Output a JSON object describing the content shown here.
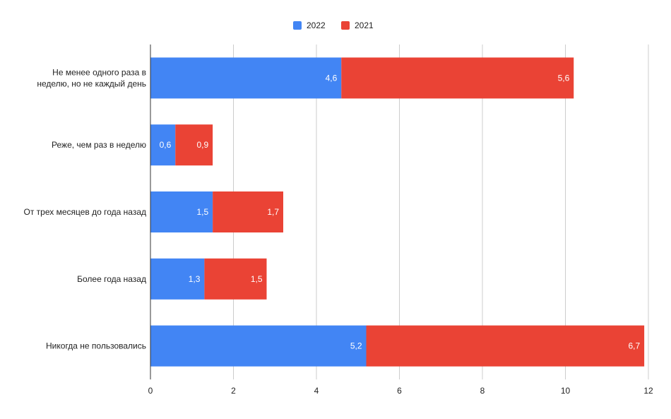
{
  "chart_data": {
    "type": "bar",
    "orientation": "horizontal",
    "stacked": true,
    "categories": [
      [
        "Не менее одного раза в",
        "неделю, но не каждый день"
      ],
      [
        "Реже, чем раз в неделю"
      ],
      [
        "От трех месяцев до года назад"
      ],
      [
        "Более года назад"
      ],
      [
        "Никогда не пользовались"
      ]
    ],
    "series": [
      {
        "name": "2022",
        "color": "#4285f4",
        "values": [
          4.6,
          0.6,
          1.5,
          1.3,
          5.2
        ],
        "labels": [
          "4,6",
          "0,6",
          "1,5",
          "1,3",
          "5,2"
        ]
      },
      {
        "name": "2021",
        "color": "#ea4335",
        "values": [
          5.6,
          0.9,
          1.7,
          1.5,
          6.7
        ],
        "labels": [
          "5,6",
          "0,9",
          "1,7",
          "1,5",
          "6,7"
        ]
      }
    ],
    "xlim": [
      0,
      12
    ],
    "xticks": [
      0,
      2,
      4,
      6,
      8,
      10,
      12
    ],
    "xtick_labels": [
      "0",
      "2",
      "4",
      "6",
      "8",
      "10",
      "12"
    ],
    "grid": true,
    "legend_position": "top-center",
    "title": "",
    "xlabel": "",
    "ylabel": ""
  }
}
